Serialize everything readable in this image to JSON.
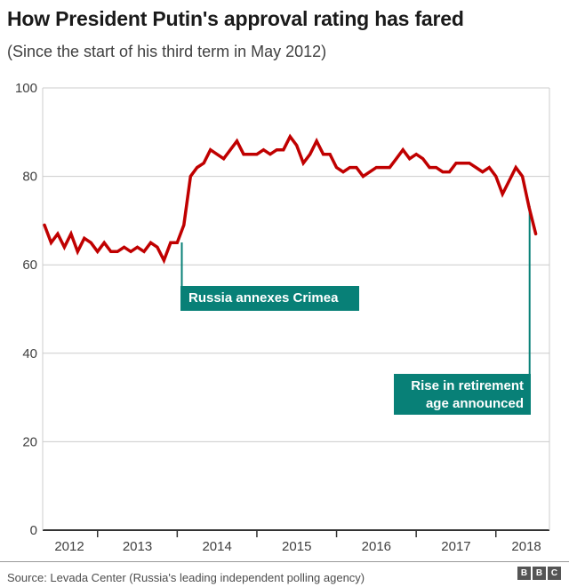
{
  "header": {
    "title": "How President Putin's approval rating has fared",
    "subtitle": "(Since the start of his third term in May 2012)"
  },
  "chart_data": {
    "type": "line",
    "x_start_month": "2012-05",
    "x_end_month": "2018-07",
    "x_interval": "monthly",
    "values": [
      69,
      65,
      67,
      64,
      67,
      63,
      66,
      65,
      63,
      65,
      63,
      63,
      64,
      63,
      64,
      63,
      65,
      64,
      61,
      65,
      65,
      69,
      80,
      82,
      83,
      86,
      85,
      84,
      86,
      88,
      85,
      85,
      85,
      86,
      85,
      86,
      86,
      89,
      87,
      83,
      85,
      88,
      85,
      85,
      82,
      81,
      82,
      82,
      80,
      81,
      82,
      82,
      82,
      84,
      86,
      84,
      85,
      84,
      82,
      82,
      81,
      81,
      83,
      83,
      83,
      82,
      81,
      82,
      80,
      76,
      79,
      82,
      80,
      73,
      67
    ],
    "y_ticks": [
      0,
      20,
      40,
      60,
      80,
      100
    ],
    "x_tick_years": [
      "2012",
      "2013",
      "2014",
      "2015",
      "2016",
      "2017",
      "2018"
    ],
    "ylim": [
      0,
      100
    ],
    "grid": true,
    "line_color": "#c00000",
    "annotation_color": "#088077",
    "annotations": [
      {
        "text": "Russia annexes Crimea",
        "month": "2014-03"
      },
      {
        "text_line1": "Rise in retirement",
        "text_line2": "age announced",
        "month": "2018-06"
      }
    ]
  },
  "footer": {
    "source": "Source: Levada Center (Russia's leading independent polling agency)",
    "logo_letters": [
      "B",
      "B",
      "C"
    ]
  }
}
